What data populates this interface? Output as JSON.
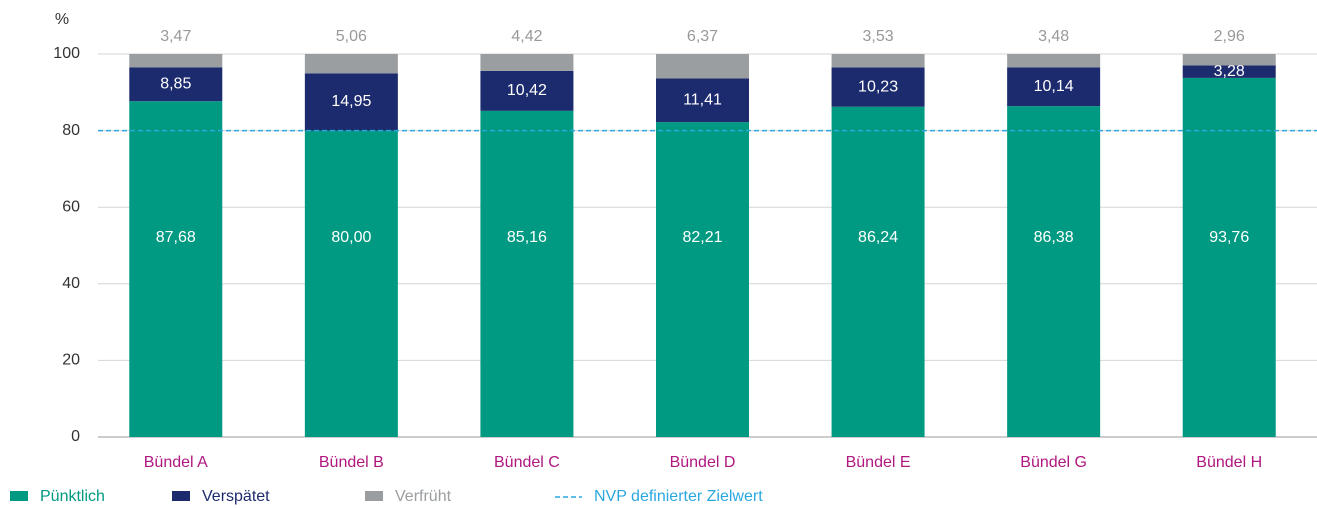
{
  "chart_data": {
    "type": "stacked_bar",
    "y_label": "%",
    "categories": [
      "Bündel A",
      "Bündel B",
      "Bündel C",
      "Bündel D",
      "Bündel E",
      "Bündel G",
      "Bündel H"
    ],
    "series": [
      {
        "name": "Pünktlich",
        "color": "#009a82",
        "values": [
          87.68,
          80.0,
          85.16,
          82.21,
          86.24,
          86.38,
          93.76
        ],
        "value_labels": [
          "87,68",
          "80,00",
          "85,16",
          "82,21",
          "86,24",
          "86,38",
          "93,76"
        ]
      },
      {
        "name": "Verspätet",
        "color": "#1c2a6e",
        "values": [
          8.85,
          14.95,
          10.42,
          11.41,
          10.23,
          10.14,
          3.28
        ],
        "value_labels": [
          "8,85",
          "14,95",
          "10,42",
          "11,41",
          "10,23",
          "10,14",
          "3,28"
        ]
      },
      {
        "name": "Verfrüht",
        "color": "#9a9ea1",
        "values": [
          3.47,
          5.06,
          4.42,
          6.37,
          3.53,
          3.48,
          2.96
        ],
        "value_labels": [
          "3,47",
          "5,06",
          "4,42",
          "6,37",
          "3,53",
          "3,48",
          "2,96"
        ]
      }
    ],
    "reference_line": {
      "name": "NVP definierter Zielwert",
      "value": 80,
      "color": "#2aa7df"
    },
    "ylim": [
      0,
      100
    ],
    "yticks": [
      0,
      20,
      40,
      60,
      80,
      100
    ],
    "grid": true
  }
}
